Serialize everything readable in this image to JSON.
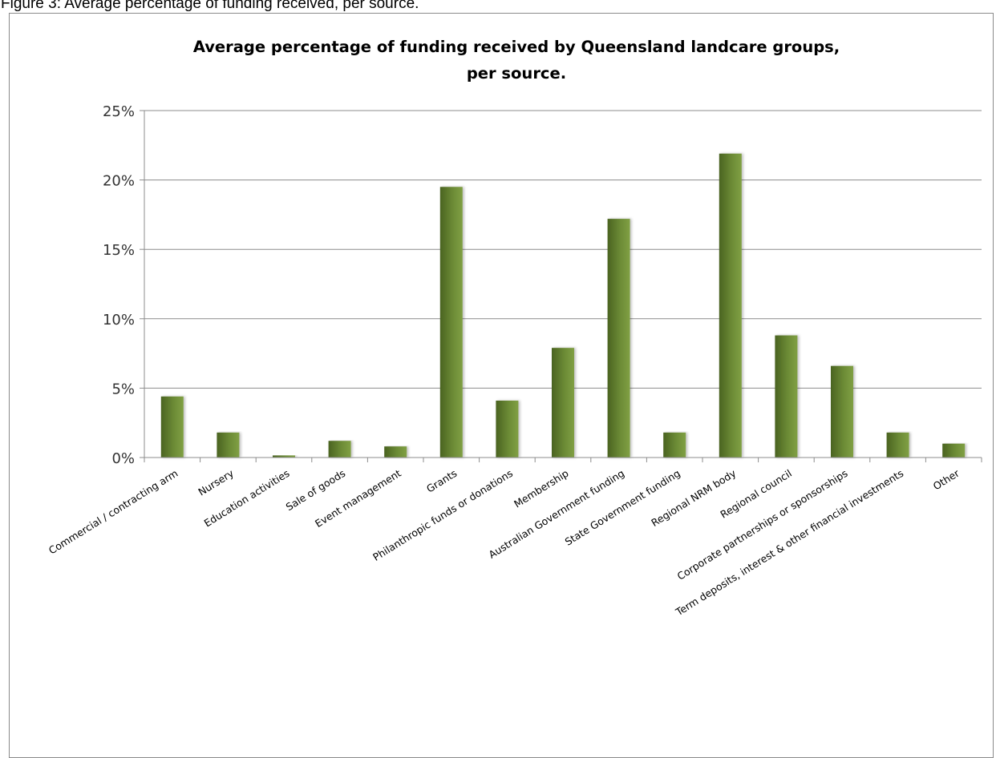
{
  "figure_caption": "Figure 3: Average percentage of funding received, per source.",
  "chart_data": {
    "type": "bar",
    "title_lines": [
      "Average percentage of funding received by Queensland landcare groups,",
      "per source."
    ],
    "xlabel": "",
    "ylabel": "",
    "ylim": [
      0,
      25
    ],
    "y_ticks": [
      0,
      5,
      10,
      15,
      20,
      25
    ],
    "y_tick_labels": [
      "0%",
      "5%",
      "10%",
      "15%",
      "20%",
      "25%"
    ],
    "grid": true,
    "legend": "none",
    "bar_color": "#6b8a35",
    "categories": [
      "Commercial / contracting arm",
      "Nursery",
      "Education activities",
      "Sale of goods",
      "Event management",
      "Grants",
      "Philanthropic funds or donations",
      "Membership",
      "Australian Government funding",
      "State Government funding",
      "Regional NRM body",
      "Regional council",
      "Corporate partnerships or sponsorships",
      "Term deposits, interest & other financial investments",
      "Other"
    ],
    "values": [
      4.4,
      1.8,
      0.15,
      1.2,
      0.8,
      19.5,
      4.1,
      7.9,
      17.2,
      1.8,
      21.9,
      8.8,
      6.6,
      1.8,
      1.0
    ]
  }
}
